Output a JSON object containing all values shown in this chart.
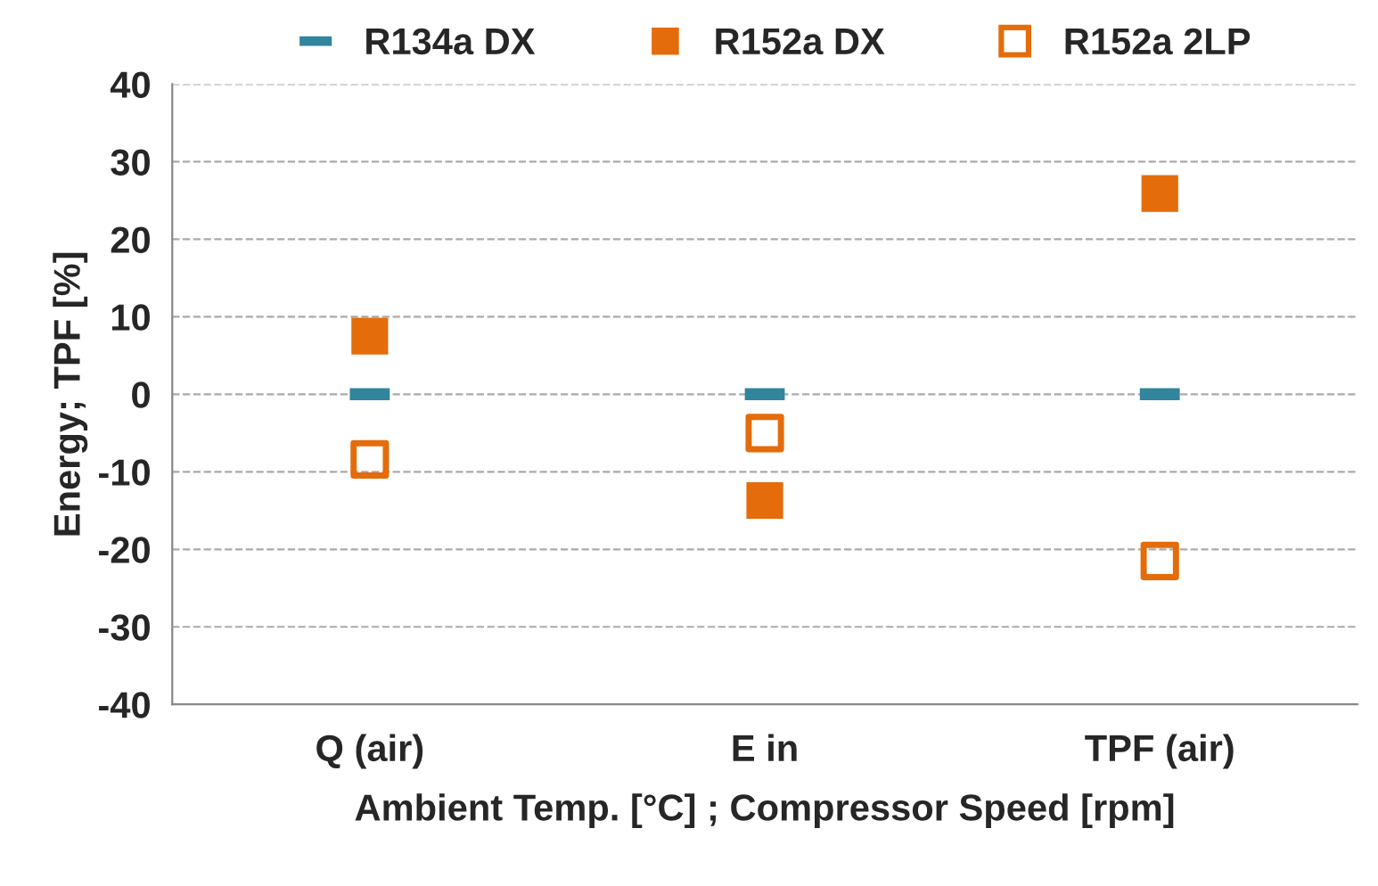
{
  "chart_data": {
    "type": "scatter",
    "xlabel": "Ambient Temp. [°C] ; Compressor Speed [rpm]",
    "ylabel": "Energy; TPF [%]",
    "categories": [
      "Q (air)",
      "E in",
      "TPF (air)"
    ],
    "series": [
      {
        "name": "R134a DX",
        "color": "#31859c",
        "values": [
          0,
          0,
          0
        ]
      },
      {
        "name": "R152a DX",
        "color": "#e46c0a",
        "marker": "square",
        "values": [
          7.5,
          -13.7,
          25.9
        ]
      },
      {
        "name": "R152a 2LP",
        "color": "#e46c0a",
        "marker": "square-open",
        "values": [
          -8.4,
          -5,
          -21.5
        ]
      }
    ],
    "ylim": [
      -40,
      40
    ],
    "yticks": [
      -40,
      -30,
      -20,
      -10,
      0,
      10,
      20,
      30,
      40
    ],
    "grid": "y",
    "legend": "top"
  }
}
